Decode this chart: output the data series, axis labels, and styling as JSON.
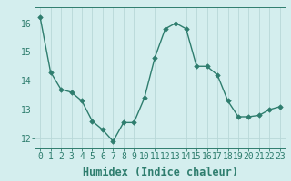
{
  "x": [
    0,
    1,
    2,
    3,
    4,
    5,
    6,
    7,
    8,
    9,
    10,
    11,
    12,
    13,
    14,
    15,
    16,
    17,
    18,
    19,
    20,
    21,
    22,
    23
  ],
  "y": [
    16.2,
    14.3,
    13.7,
    13.6,
    13.3,
    12.6,
    12.3,
    11.9,
    12.55,
    12.55,
    13.4,
    14.8,
    15.8,
    16.0,
    15.8,
    14.5,
    14.5,
    14.2,
    13.3,
    12.75,
    12.75,
    12.8,
    13.0,
    13.1
  ],
  "line_color": "#2e7d6e",
  "bg_color": "#d4eeee",
  "grid_color": "#b8d8d8",
  "xlabel": "Humidex (Indice chaleur)",
  "ylabel_ticks": [
    12,
    13,
    14,
    15,
    16
  ],
  "ylim": [
    11.65,
    16.55
  ],
  "xlim": [
    -0.5,
    23.5
  ],
  "tick_color": "#2e7d6e",
  "font_color": "#2e7d6e",
  "marker_size": 2.8,
  "line_width": 1.0,
  "xlabel_fontsize": 8.5,
  "tick_fontsize": 7.0
}
